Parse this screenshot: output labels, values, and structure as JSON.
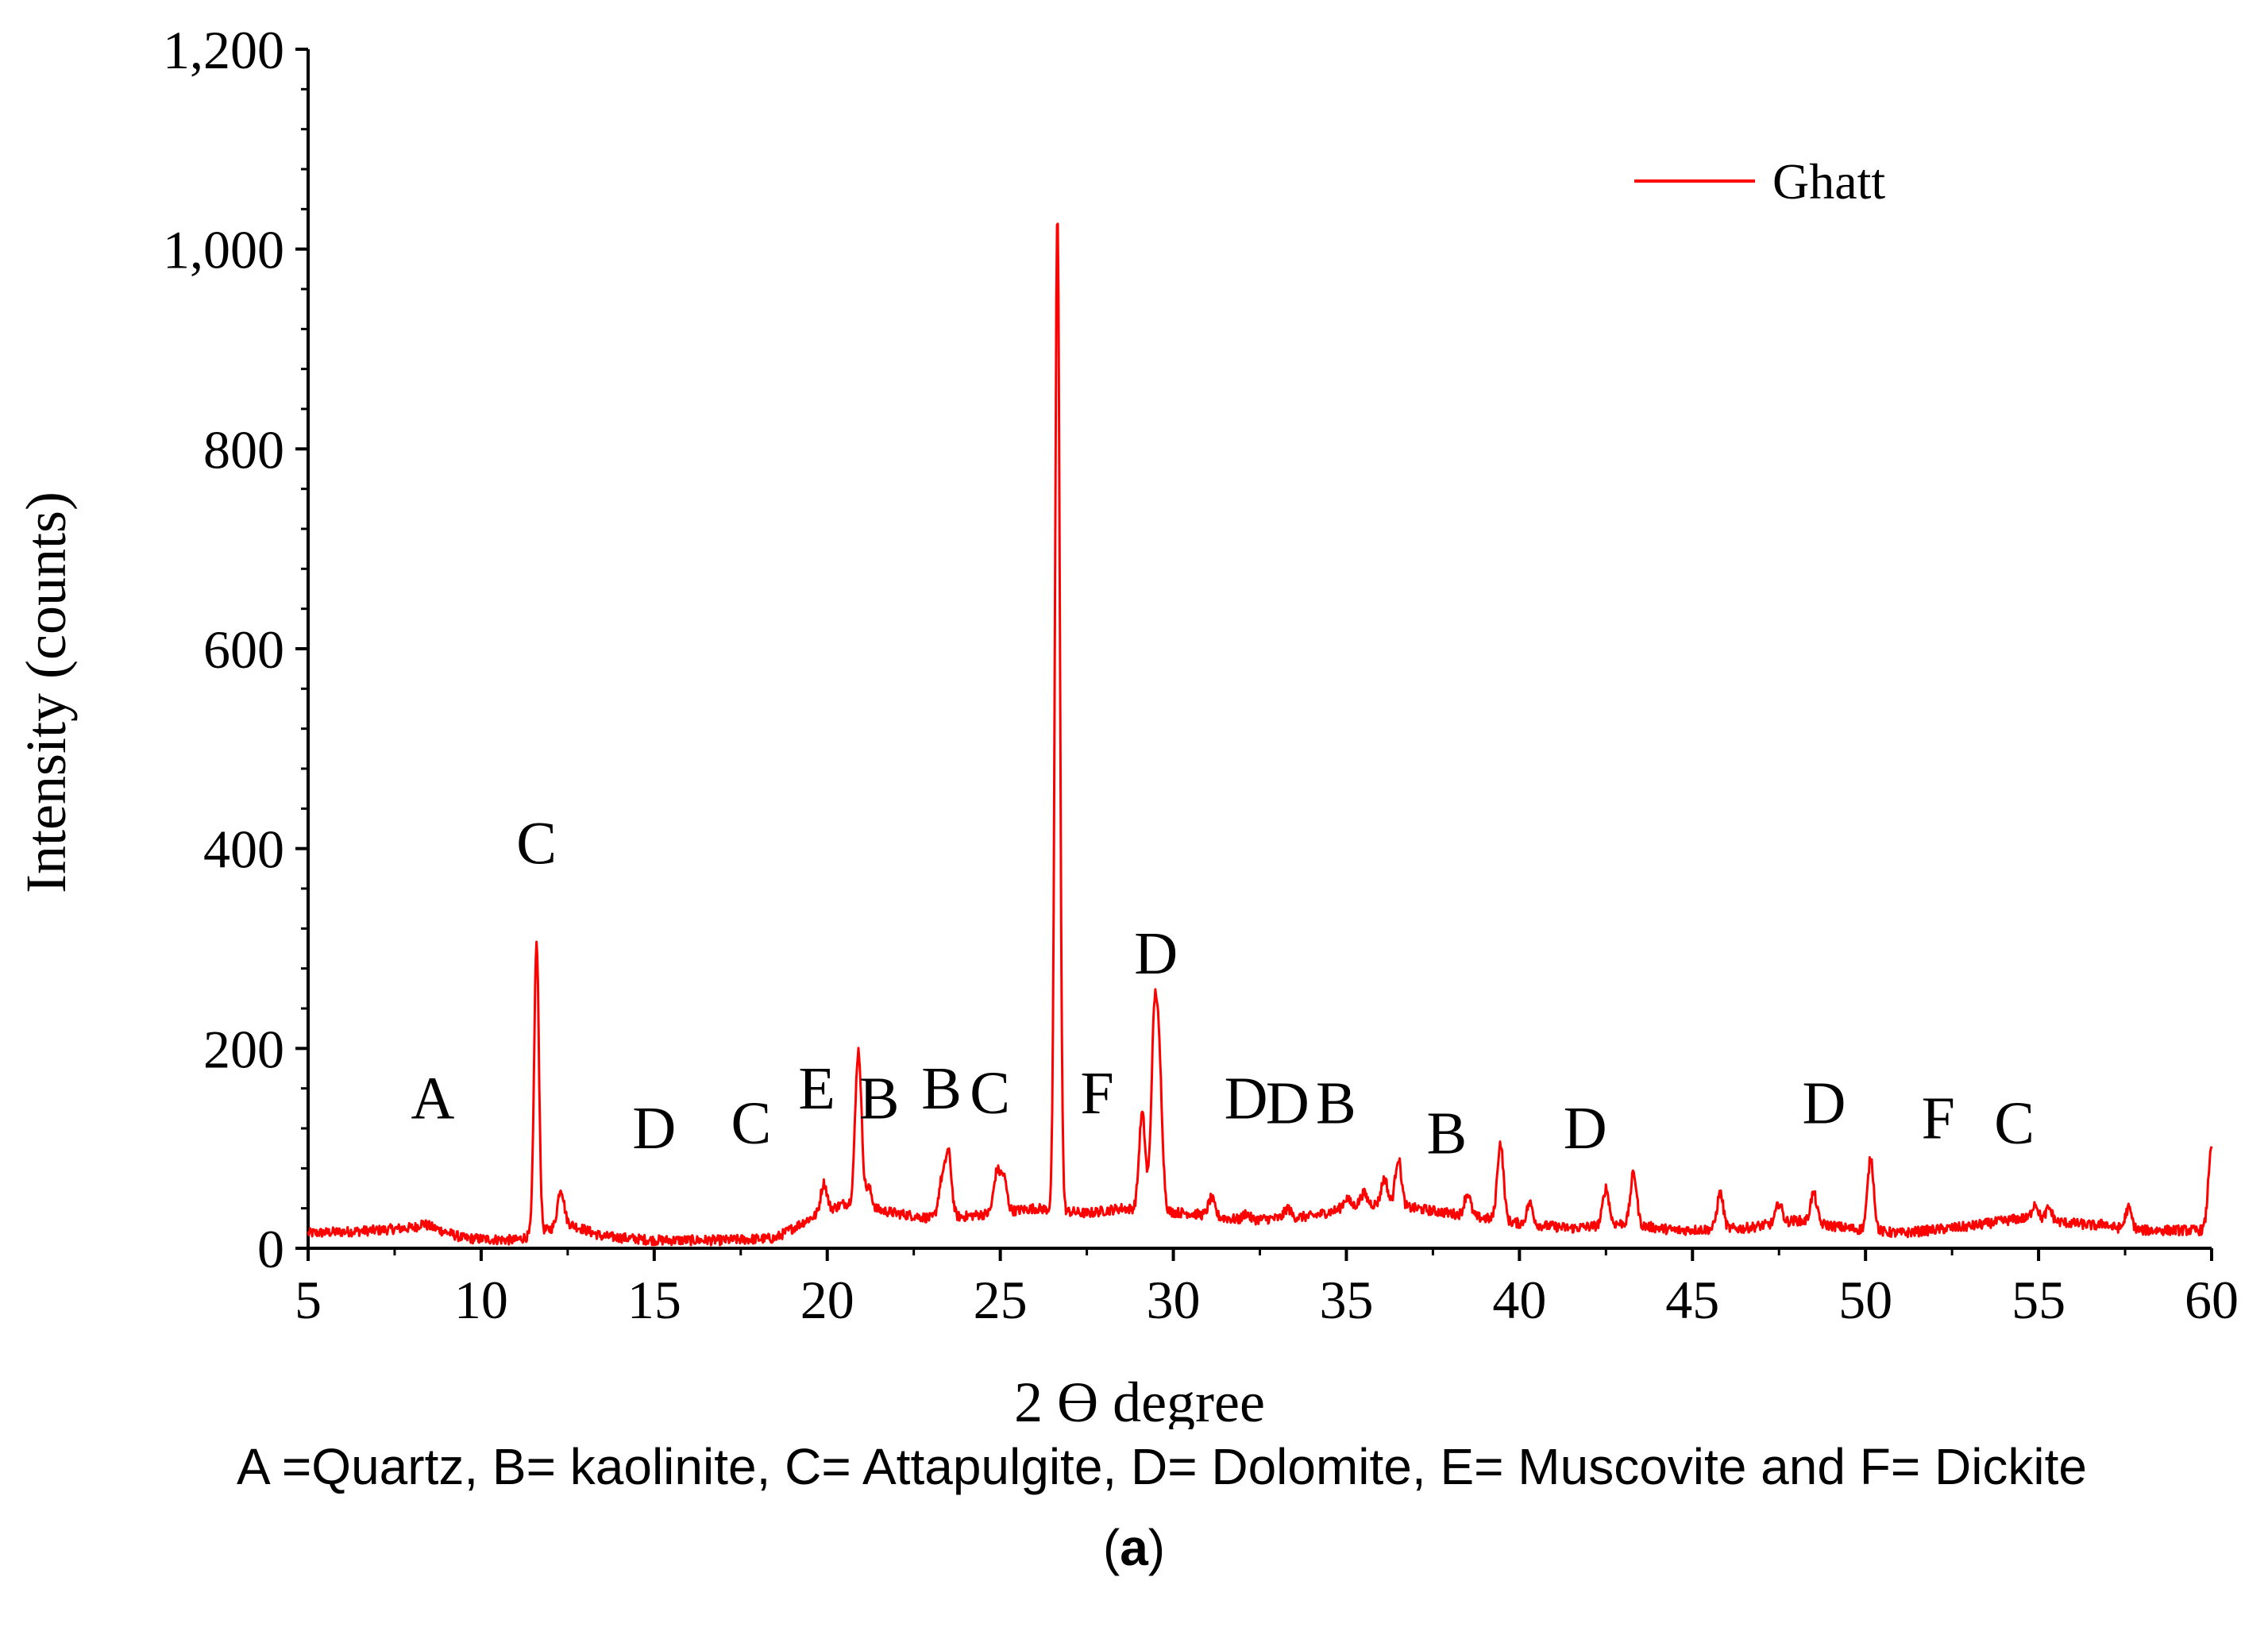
{
  "chart_data": {
    "type": "line",
    "title": "",
    "xlabel": "2 Ɵ degree",
    "ylabel": "Intensity (counts)",
    "xlim": [
      5,
      60
    ],
    "ylim": [
      0,
      1200
    ],
    "x_ticks": [
      "5",
      "10",
      "15",
      "20",
      "25",
      "30",
      "35",
      "40",
      "45",
      "50",
      "55",
      "60"
    ],
    "y_ticks": [
      "0",
      "200",
      "400",
      "600",
      "800",
      "1,000",
      "1,200"
    ],
    "legend": {
      "position": "top-right",
      "entries": [
        "Ghatt"
      ]
    },
    "grid": false,
    "series": [
      {
        "name": "Ghatt",
        "color": "#ff0000",
        "baseline": [
          [
            5,
            15
          ],
          [
            7,
            18
          ],
          [
            8.5,
            22
          ],
          [
            9.5,
            10
          ],
          [
            11,
            8
          ],
          [
            12.5,
            25
          ],
          [
            13.5,
            12
          ],
          [
            15,
            8
          ],
          [
            17,
            8
          ],
          [
            18.5,
            10
          ],
          [
            19.5,
            30
          ],
          [
            20.5,
            45
          ],
          [
            22,
            35
          ],
          [
            23,
            30
          ],
          [
            24,
            32
          ],
          [
            26,
            40
          ],
          [
            27.5,
            35
          ],
          [
            28.5,
            40
          ],
          [
            30.5,
            35
          ],
          [
            32,
            28
          ],
          [
            34,
            32
          ],
          [
            35.5,
            45
          ],
          [
            37,
            40
          ],
          [
            38,
            35
          ],
          [
            40,
            25
          ],
          [
            41.5,
            20
          ],
          [
            43,
            25
          ],
          [
            44.5,
            18
          ],
          [
            46.5,
            20
          ],
          [
            48,
            28
          ],
          [
            49.5,
            20
          ],
          [
            51,
            15
          ],
          [
            53,
            22
          ],
          [
            54.5,
            30
          ],
          [
            56,
            25
          ],
          [
            58,
            18
          ],
          [
            59.9,
            18
          ]
        ],
        "peaks": [
          {
            "x": 8.3,
            "y": 25
          },
          {
            "x": 11.6,
            "y": 305
          },
          {
            "x": 12.3,
            "y": 60
          },
          {
            "x": 19.9,
            "y": 65
          },
          {
            "x": 20.9,
            "y": 198
          },
          {
            "x": 21.2,
            "y": 60
          },
          {
            "x": 23.3,
            "y": 65
          },
          {
            "x": 23.5,
            "y": 95
          },
          {
            "x": 24.9,
            "y": 75
          },
          {
            "x": 25.1,
            "y": 70
          },
          {
            "x": 26.65,
            "y": 1035
          },
          {
            "x": 29.1,
            "y": 135
          },
          {
            "x": 29.45,
            "y": 215
          },
          {
            "x": 29.6,
            "y": 160
          },
          {
            "x": 31.1,
            "y": 50
          },
          {
            "x": 32.1,
            "y": 35
          },
          {
            "x": 33.3,
            "y": 40
          },
          {
            "x": 35.0,
            "y": 50
          },
          {
            "x": 35.5,
            "y": 55
          },
          {
            "x": 36.1,
            "y": 70
          },
          {
            "x": 36.5,
            "y": 90
          },
          {
            "x": 38.5,
            "y": 55
          },
          {
            "x": 39.45,
            "y": 105
          },
          {
            "x": 40.3,
            "y": 45
          },
          {
            "x": 42.5,
            "y": 60
          },
          {
            "x": 43.3,
            "y": 75
          },
          {
            "x": 45.8,
            "y": 55
          },
          {
            "x": 47.5,
            "y": 45
          },
          {
            "x": 48.5,
            "y": 55
          },
          {
            "x": 50.15,
            "y": 90
          },
          {
            "x": 54.9,
            "y": 45
          },
          {
            "x": 55.3,
            "y": 40
          },
          {
            "x": 56.9,
            "y": 25
          },
          {
            "x": 57.6,
            "y": 40
          },
          {
            "x": 60.0,
            "y": 105
          }
        ]
      }
    ],
    "annotations": [
      {
        "text": "A",
        "x": 8.6,
        "y": 130
      },
      {
        "text": "C",
        "x": 11.6,
        "y": 385
      },
      {
        "text": "D",
        "x": 15.0,
        "y": 100
      },
      {
        "text": "C",
        "x": 17.8,
        "y": 105
      },
      {
        "text": "E",
        "x": 19.7,
        "y": 140
      },
      {
        "text": "B",
        "x": 21.5,
        "y": 130
      },
      {
        "text": "B",
        "x": 23.3,
        "y": 140
      },
      {
        "text": "C",
        "x": 24.7,
        "y": 135
      },
      {
        "text": "F",
        "x": 27.8,
        "y": 135
      },
      {
        "text": "D",
        "x": 29.5,
        "y": 275
      },
      {
        "text": "D",
        "x": 32.1,
        "y": 130
      },
      {
        "text": "D",
        "x": 33.3,
        "y": 125
      },
      {
        "text": "B",
        "x": 34.7,
        "y": 125
      },
      {
        "text": "B",
        "x": 37.9,
        "y": 95
      },
      {
        "text": "D",
        "x": 41.9,
        "y": 100
      },
      {
        "text": "D",
        "x": 48.8,
        "y": 125
      },
      {
        "text": "F",
        "x": 52.1,
        "y": 110
      },
      {
        "text": "C",
        "x": 54.3,
        "y": 105
      }
    ]
  },
  "caption": {
    "legend_text": "A =Quartz, B= kaolinite, C= Attapulgite, D= Dolomite, E= Muscovite and F= Dickite",
    "panel_open": "(",
    "panel_letter": "a",
    "panel_close": ")"
  }
}
